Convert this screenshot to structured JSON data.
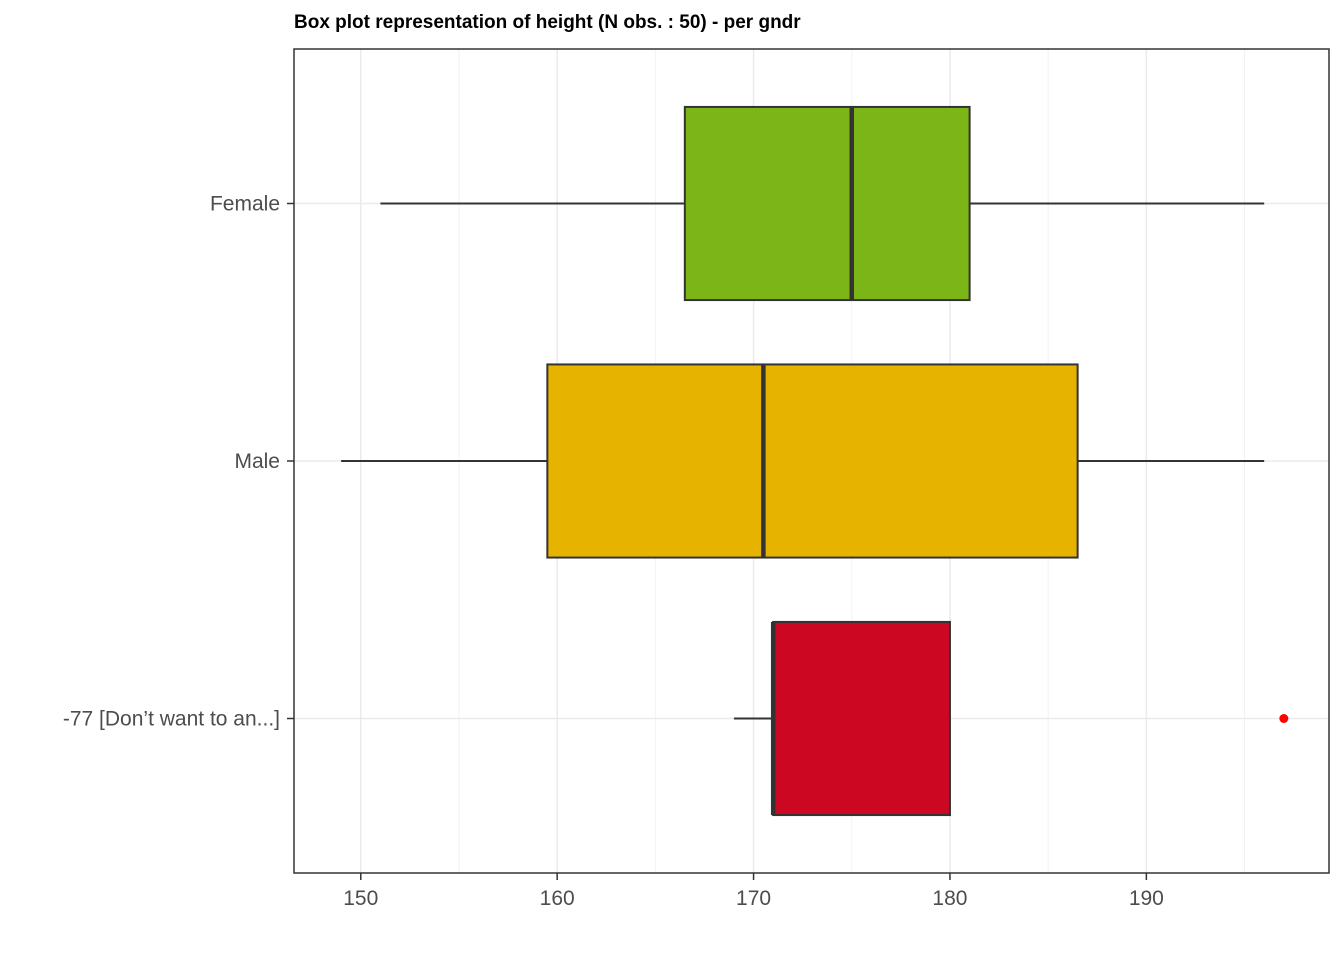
{
  "chart_data": {
    "type": "box",
    "orientation": "horizontal",
    "title": "Box plot representation of height (N obs. : 50) - per gndr",
    "xlabel": "",
    "ylabel": "",
    "xlim": [
      146.6,
      199.3
    ],
    "x_ticks": [
      150,
      160,
      170,
      180,
      190
    ],
    "grid": true,
    "legend": "none",
    "categories": [
      "Female",
      "Male",
      "-77 [Don’t want to an...]"
    ],
    "boxes": [
      {
        "category": "Female",
        "whisker_low": 151,
        "q1": 166.5,
        "median": 175,
        "q3": 181,
        "whisker_high": 196,
        "outliers": [],
        "color": "#7cb518"
      },
      {
        "category": "Male",
        "whisker_low": 149,
        "q1": 159.5,
        "median": 170.5,
        "q3": 186.5,
        "whisker_high": 196,
        "outliers": [],
        "color": "#e6b400"
      },
      {
        "category": "-77 [Don’t want to an...]",
        "whisker_low": 169,
        "q1": 171,
        "median": 171,
        "q3": 180,
        "whisker_high": 180,
        "outliers": [
          197
        ],
        "color": "#cc0722"
      }
    ],
    "outlier_color": "#ff0000"
  }
}
